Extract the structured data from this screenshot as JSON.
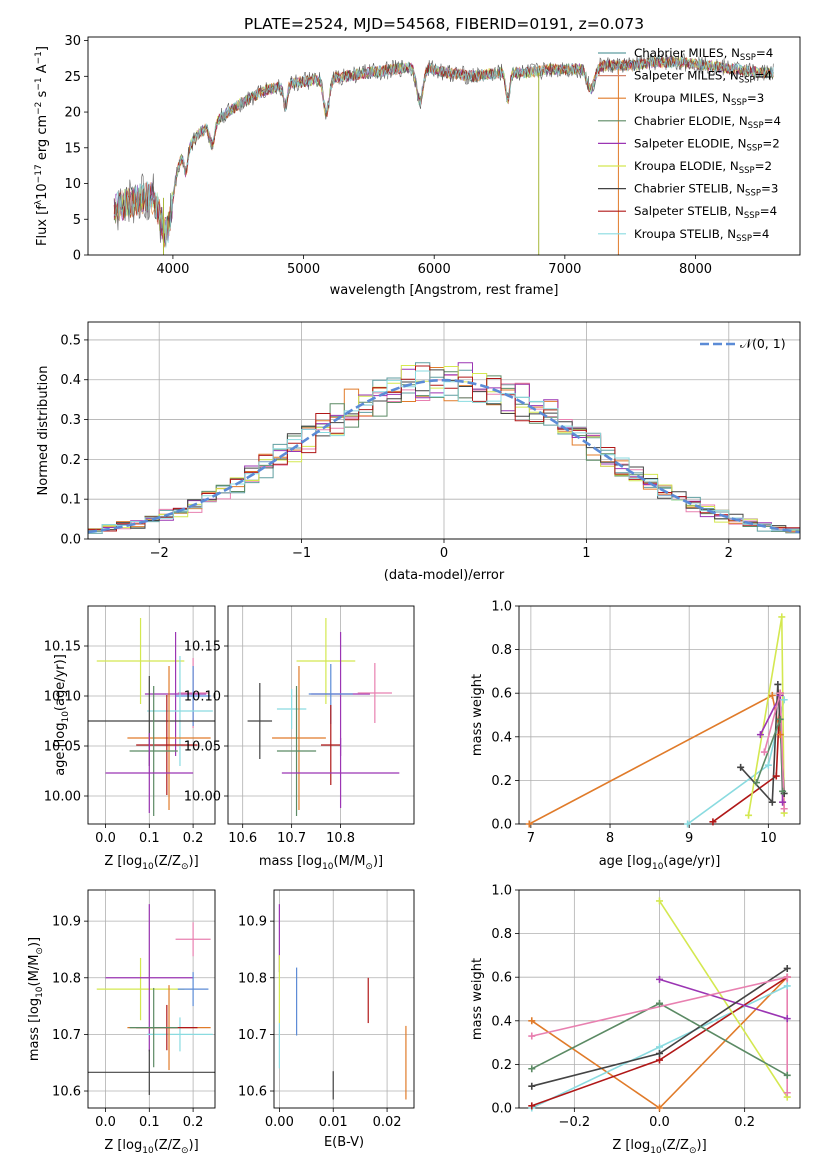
{
  "chart_data": [
    {
      "id": "spectrum",
      "type": "line",
      "title": "PLATE=2524, MJD=54568, FIBERID=0191, z=0.073",
      "xlabel": "wavelength [Angstrom, rest frame]",
      "ylabel_parts": [
        "Flux [f",
        "λ",
        "10",
        "−17",
        " erg cm",
        "−2",
        " s",
        "−1",
        " A",
        "−1",
        "]"
      ],
      "xlim": [
        3350,
        8800
      ],
      "ylim": [
        0,
        30.5
      ],
      "xticks": [
        4000,
        5000,
        6000,
        7000,
        8000
      ],
      "yticks": [
        0,
        5,
        10,
        15,
        20,
        25,
        30
      ],
      "grid": false,
      "legend_position": "right",
      "legend": [
        {
          "name": "Chabrier MILES, N",
          "sub": "SSP",
          "tail": "=4",
          "color": "#5f9ea0"
        },
        {
          "name": "Salpeter MILES, N",
          "sub": "SSP",
          "tail": "=4",
          "color": "#d0826c"
        },
        {
          "name": "Kroupa MILES, N",
          "sub": "SSP",
          "tail": "=3",
          "color": "#e07b2a"
        },
        {
          "name": "Chabrier ELODIE, N",
          "sub": "SSP",
          "tail": "=4",
          "color": "#5b8a64"
        },
        {
          "name": "Salpeter ELODIE, N",
          "sub": "SSP",
          "tail": "=2",
          "color": "#9b35b3"
        },
        {
          "name": "Kroupa ELODIE, N",
          "sub": "SSP",
          "tail": "=2",
          "color": "#d4e850"
        },
        {
          "name": "Chabrier STELIB, N",
          "sub": "SSP",
          "tail": "=3",
          "color": "#444444"
        },
        {
          "name": "Salpeter STELIB, N",
          "sub": "SSP",
          "tail": "=4",
          "color": "#b01818"
        },
        {
          "name": "Kroupa STELIB, N",
          "sub": "SSP",
          "tail": "=4",
          "color": "#8adbe0"
        }
      ],
      "continuum": [
        [
          3550,
          6.5
        ],
        [
          3700,
          7.5
        ],
        [
          3850,
          8.5
        ],
        [
          3950,
          10.5
        ],
        [
          4050,
          13.5
        ],
        [
          4200,
          17
        ],
        [
          4350,
          19
        ],
        [
          4500,
          21
        ],
        [
          4700,
          23
        ],
        [
          4900,
          24
        ],
        [
          5100,
          24.5
        ],
        [
          5300,
          25
        ],
        [
          5500,
          25.5
        ],
        [
          5700,
          26
        ],
        [
          5900,
          26.5
        ],
        [
          6100,
          25.5
        ],
        [
          6300,
          25
        ],
        [
          6500,
          25.5
        ],
        [
          6700,
          25.5
        ],
        [
          6900,
          26
        ],
        [
          7100,
          26
        ],
        [
          7300,
          26.5
        ],
        [
          7500,
          26.5
        ],
        [
          7700,
          27
        ],
        [
          7900,
          27
        ],
        [
          8100,
          26.5
        ],
        [
          8300,
          26
        ],
        [
          8500,
          25.5
        ],
        [
          8600,
          25.5
        ]
      ],
      "absorption": [
        [
          3933,
          4,
          60
        ],
        [
          3968,
          4,
          60
        ],
        [
          4100,
          3,
          20
        ],
        [
          4300,
          3,
          25
        ],
        [
          4861,
          3,
          20
        ],
        [
          5175,
          5,
          30
        ],
        [
          5890,
          5,
          35
        ],
        [
          6563,
          4,
          20
        ],
        [
          7200,
          3,
          40
        ]
      ],
      "sharp_drops": [
        [
          6800,
          0
        ],
        [
          7410,
          0
        ],
        [
          3930,
          0
        ]
      ]
    },
    {
      "id": "residuals",
      "type": "histogram",
      "title": "",
      "xlabel": "(data-model)/error",
      "ylabel": "Normed distribution",
      "xlim": [
        -2.5,
        2.5
      ],
      "ylim": [
        0,
        0.545
      ],
      "xticks": [
        -2,
        -1,
        0,
        1,
        2
      ],
      "xtick_labels": [
        "−2",
        "−1",
        "0",
        "1",
        "2"
      ],
      "yticks": [
        0.0,
        0.1,
        0.2,
        0.3,
        0.4,
        0.5
      ],
      "ytick_labels": [
        "0.0",
        "0.1",
        "0.2",
        "0.3",
        "0.4",
        "0.5"
      ],
      "grid": true,
      "bin_width": 0.1,
      "reference_curve": {
        "label": "𝒩(0, 1)",
        "color": "#5b8bd6",
        "style": "dashed"
      },
      "legend_position": "top-right"
    },
    {
      "id": "age_vs_Z",
      "type": "errorbar",
      "xlabel_parts": [
        "Z [log",
        "10",
        "(Z/Z",
        "⊙",
        ")]"
      ],
      "ylabel_parts": [
        "age  [log",
        "10",
        "(age/yr)]"
      ],
      "xlim": [
        -0.04,
        0.25
      ],
      "ylim": [
        9.972,
        10.19
      ],
      "xticks": [
        0.0,
        0.1,
        0.2
      ],
      "xtick_labels": [
        "0.0",
        "0.1",
        "0.2"
      ],
      "yticks": [
        10.0,
        10.05,
        10.1,
        10.15
      ],
      "ytick_labels": [
        "10.00",
        "10.05",
        "10.10",
        "10.15"
      ],
      "grid": true,
      "points": [
        {
          "color": "#d4e850",
          "x": 0.08,
          "xerr": 0.1,
          "y": 10.135,
          "yerr": 0.043
        },
        {
          "color": "#9b35b3",
          "x": 0.16,
          "xerr": 0.07,
          "y": 10.102,
          "yerr": 0.062
        },
        {
          "color": "#e880b0",
          "x": 0.2,
          "xerr": 0.035,
          "y": 10.103,
          "yerr": 0.035
        },
        {
          "color": "#5b8bd6",
          "x": 0.2,
          "xerr": 0.04,
          "y": 10.1,
          "yerr": 0.03
        },
        {
          "color": "#8adbe0",
          "x": 0.17,
          "xerr": 0.075,
          "y": 10.085,
          "yerr": 0.055
        },
        {
          "color": "#444444",
          "x": 0.1,
          "xerr": 0.15,
          "y": 10.075,
          "yerr": 0.045
        },
        {
          "color": "#e07b2a",
          "x": 0.145,
          "xerr": 0.095,
          "y": 10.058,
          "yerr": 0.072
        },
        {
          "color": "#b01818",
          "x": 0.14,
          "xerr": 0.07,
          "y": 10.051,
          "yerr": 0.05
        },
        {
          "color": "#5b8a64",
          "x": 0.11,
          "xerr": 0.055,
          "y": 10.045,
          "yerr": 0.065
        },
        {
          "color": "#9b35b3",
          "x": 0.1,
          "xerr": 0.1,
          "y": 10.023,
          "yerr": 0.04
        }
      ]
    },
    {
      "id": "age_vs_mass",
      "type": "errorbar",
      "xlabel_parts": [
        "mass [log",
        "10",
        "(M/M",
        "⊙",
        ")]"
      ],
      "xlim": [
        10.57,
        10.95
      ],
      "ylim": [
        9.972,
        10.19
      ],
      "xticks": [
        10.6,
        10.7,
        10.8
      ],
      "xtick_labels": [
        "10.6",
        "10.7",
        "10.8"
      ],
      "yticks": [
        10.0,
        10.05,
        10.1,
        10.15
      ],
      "ytick_labels": [
        "10.00",
        "10.05",
        "10.10",
        "10.15"
      ],
      "grid": true,
      "points": [
        {
          "color": "#d4e850",
          "x": 10.77,
          "xerr": 0.06,
          "y": 10.135,
          "yerr": 0.043
        },
        {
          "color": "#9b35b3",
          "x": 10.8,
          "xerr": 0.06,
          "y": 10.102,
          "yerr": 0.062
        },
        {
          "color": "#e880b0",
          "x": 10.87,
          "xerr": 0.035,
          "y": 10.103,
          "yerr": 0.03
        },
        {
          "color": "#5b8bd6",
          "x": 10.78,
          "xerr": 0.045,
          "y": 10.102,
          "yerr": 0.03
        },
        {
          "color": "#8adbe0",
          "x": 10.7,
          "xerr": 0.03,
          "y": 10.087,
          "yerr": 0.02
        },
        {
          "color": "#444444",
          "x": 10.635,
          "xerr": 0.025,
          "y": 10.075,
          "yerr": 0.038
        },
        {
          "color": "#e07b2a",
          "x": 10.715,
          "xerr": 0.055,
          "y": 10.058,
          "yerr": 0.072
        },
        {
          "color": "#b01818",
          "x": 10.78,
          "xerr": 0.02,
          "y": 10.051,
          "yerr": 0.04
        },
        {
          "color": "#5b8a64",
          "x": 10.71,
          "xerr": 0.04,
          "y": 10.045,
          "yerr": 0.065
        },
        {
          "color": "#9b35b3",
          "x": 10.8,
          "xerr": 0.12,
          "y": 10.023,
          "yerr": 0.035
        }
      ]
    },
    {
      "id": "weight_vs_age",
      "type": "line",
      "xlabel_parts": [
        "age  [log",
        "10",
        "(age/yr)]"
      ],
      "ylabel": "mass weight",
      "xlim": [
        6.85,
        10.4
      ],
      "ylim": [
        0,
        1
      ],
      "xticks": [
        7,
        8,
        9,
        10
      ],
      "xtick_labels": [
        "7",
        "8",
        "9",
        "10"
      ],
      "yticks": [
        0.0,
        0.2,
        0.4,
        0.6,
        0.8,
        1.0
      ],
      "ytick_labels": [
        "0.0",
        "0.2",
        "0.4",
        "0.6",
        "0.8",
        "1.0"
      ],
      "grid": true,
      "series": [
        {
          "color": "#e07b2a",
          "x": [
            6.98,
            10.05,
            10.15
          ],
          "y": [
            0.0,
            0.59,
            0.41
          ]
        },
        {
          "color": "#8adbe0",
          "x": [
            8.98,
            10.0,
            10.2
          ],
          "y": [
            0.0,
            0.27,
            0.57
          ]
        },
        {
          "color": "#b01818",
          "x": [
            9.3,
            10.1,
            10.15
          ],
          "y": [
            0.01,
            0.22,
            0.6
          ]
        },
        {
          "color": "#d4e850",
          "x": [
            9.75,
            10.17,
            10.2
          ],
          "y": [
            0.04,
            0.95,
            0.05
          ]
        },
        {
          "color": "#9b35b3",
          "x": [
            9.9,
            10.15,
            10.18
          ],
          "y": [
            0.41,
            0.59,
            0.1
          ]
        },
        {
          "color": "#444444",
          "x": [
            9.65,
            10.05,
            10.12,
            10.2
          ],
          "y": [
            0.26,
            0.1,
            0.64,
            0.14
          ]
        },
        {
          "color": "#5b8a64",
          "x": [
            9.85,
            10.15,
            10.18
          ],
          "y": [
            0.19,
            0.48,
            0.15
          ]
        },
        {
          "color": "#e880b0",
          "x": [
            9.95,
            10.15,
            10.2
          ],
          "y": [
            0.33,
            0.6,
            0.07
          ]
        }
      ]
    },
    {
      "id": "mass_vs_Z",
      "type": "errorbar",
      "xlabel_parts": [
        "Z [log",
        "10",
        "(Z/Z",
        "⊙",
        ")]"
      ],
      "ylabel_parts": [
        "mass [log",
        "10",
        "(M/M",
        "⊙",
        ")]"
      ],
      "xlim": [
        -0.04,
        0.25
      ],
      "ylim": [
        10.57,
        10.955
      ],
      "xticks": [
        0.0,
        0.1,
        0.2
      ],
      "xtick_labels": [
        "0.0",
        "0.1",
        "0.2"
      ],
      "yticks": [
        10.6,
        10.7,
        10.8,
        10.9
      ],
      "ytick_labels": [
        "10.6",
        "10.7",
        "10.8",
        "10.9"
      ],
      "grid": true,
      "points": [
        {
          "color": "#d4e850",
          "x": 0.08,
          "xerr": 0.1,
          "y": 10.78,
          "yerr": 0.055
        },
        {
          "color": "#9b35b3",
          "x": 0.1,
          "xerr": 0.1,
          "y": 10.8,
          "yerr": 0.13
        },
        {
          "color": "#e880b0",
          "x": 0.2,
          "xerr": 0.04,
          "y": 10.868,
          "yerr": 0.03
        },
        {
          "color": "#5b8bd6",
          "x": 0.2,
          "xerr": 0.035,
          "y": 10.78,
          "yerr": 0.03
        },
        {
          "color": "#8adbe0",
          "x": 0.17,
          "xerr": 0.075,
          "y": 10.7,
          "yerr": 0.03
        },
        {
          "color": "#444444",
          "x": 0.1,
          "xerr": 0.15,
          "y": 10.633,
          "yerr": 0.04
        },
        {
          "color": "#e07b2a",
          "x": 0.145,
          "xerr": 0.095,
          "y": 10.712,
          "yerr": 0.075
        },
        {
          "color": "#b01818",
          "x": 0.14,
          "xerr": 0.07,
          "y": 10.712,
          "yerr": 0.04
        },
        {
          "color": "#5b8a64",
          "x": 0.11,
          "xerr": 0.055,
          "y": 10.712,
          "yerr": 0.07
        }
      ]
    },
    {
      "id": "mass_vs_ebv",
      "type": "errorbar",
      "xlabel": "E(B-V)",
      "xlim": [
        -0.001,
        0.025
      ],
      "ylim": [
        10.57,
        10.955
      ],
      "xticks": [
        0.0,
        0.01,
        0.02
      ],
      "xtick_labels": [
        "0.00",
        "0.01",
        "0.02"
      ],
      "yticks": [
        10.6,
        10.7,
        10.8,
        10.9
      ],
      "ytick_labels": [
        "10.6",
        "10.7",
        "10.8",
        "10.9"
      ],
      "grid": true,
      "points": [
        {
          "color": "#9b35b3",
          "x": 0.0,
          "xerr": 0,
          "y": 10.87,
          "yerr": 0.06
        },
        {
          "color": "#d4e850",
          "x": 0.0,
          "xerr": 0,
          "y": 10.78,
          "yerr": 0.06
        },
        {
          "color": "#8adbe0",
          "x": 0.0,
          "xerr": 0,
          "y": 10.68,
          "yerr": 0.04
        },
        {
          "color": "#5b8bd6",
          "x": 0.0032,
          "xerr": 0,
          "y": 10.758,
          "yerr": 0.06
        },
        {
          "color": "#444444",
          "x": 0.01,
          "xerr": 0,
          "y": 10.61,
          "yerr": 0.025
        },
        {
          "color": "#b01818",
          "x": 0.0165,
          "xerr": 0,
          "y": 10.76,
          "yerr": 0.04
        },
        {
          "color": "#e07b2a",
          "x": 0.0235,
          "xerr": 0,
          "y": 10.65,
          "yerr": 0.065
        }
      ]
    },
    {
      "id": "weight_vs_Z",
      "type": "line",
      "xlabel_parts": [
        "Z [log",
        "10",
        "(Z/Z",
        "⊙",
        ")]"
      ],
      "ylabel": "mass weight",
      "xlim": [
        -0.33,
        0.33
      ],
      "ylim": [
        0,
        1
      ],
      "xticks": [
        -0.2,
        0.0,
        0.2
      ],
      "xtick_labels": [
        "−0.2",
        "0.0",
        "0.2"
      ],
      "yticks": [
        0.0,
        0.2,
        0.4,
        0.6,
        0.8,
        1.0
      ],
      "ytick_labels": [
        "0.0",
        "0.2",
        "0.4",
        "0.6",
        "0.8",
        "1.0"
      ],
      "grid": true,
      "series": [
        {
          "color": "#e07b2a",
          "x": [
            -0.3,
            0.0,
            0.3
          ],
          "y": [
            0.4,
            0.0,
            0.6
          ]
        },
        {
          "color": "#8adbe0",
          "x": [
            -0.3,
            0.0,
            0.3
          ],
          "y": [
            0.0,
            0.28,
            0.56
          ]
        },
        {
          "color": "#b01818",
          "x": [
            -0.3,
            0.0,
            0.3
          ],
          "y": [
            0.01,
            0.22,
            0.6
          ]
        },
        {
          "color": "#d4e850",
          "x": [
            0.0,
            0.3
          ],
          "y": [
            0.95,
            0.05
          ]
        },
        {
          "color": "#9b35b3",
          "x": [
            0.0,
            0.3
          ],
          "y": [
            0.59,
            0.41
          ]
        },
        {
          "color": "#444444",
          "x": [
            -0.3,
            0.0,
            0.3
          ],
          "y": [
            0.1,
            0.25,
            0.64
          ]
        },
        {
          "color": "#5b8a64",
          "x": [
            -0.3,
            0.0,
            0.3
          ],
          "y": [
            0.18,
            0.48,
            0.15
          ]
        },
        {
          "color": "#e880b0",
          "x": [
            -0.3,
            0.3
          ],
          "y": [
            0.33,
            0.6
          ]
        },
        {
          "color": "#e880b0",
          "x": [
            0.3,
            0.3
          ],
          "y": [
            0.6,
            0.07
          ]
        }
      ]
    }
  ]
}
